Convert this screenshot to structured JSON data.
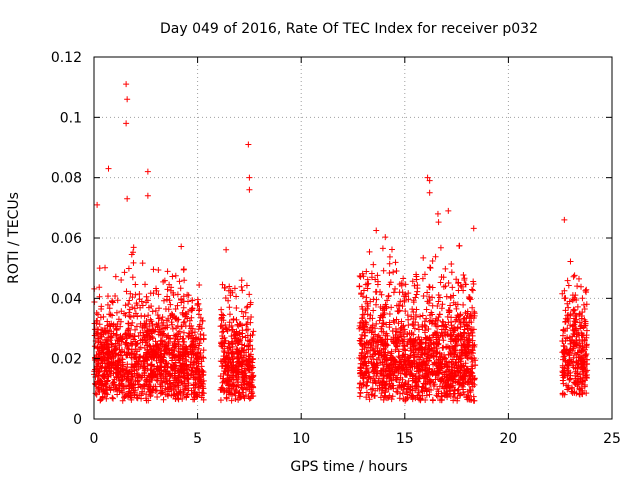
{
  "chart_data": {
    "type": "scatter",
    "title": "Day 049 of 2016, Rate Of TEC Index for receiver p032",
    "xlabel": "GPS time / hours",
    "ylabel": "ROTI / TECUs",
    "xlim": [
      0,
      25
    ],
    "ylim": [
      0,
      0.12
    ],
    "xticks": [
      0,
      5,
      10,
      15,
      20,
      25
    ],
    "yticks": [
      0,
      0.02,
      0.04,
      0.06,
      0.08,
      0.1,
      0.12
    ],
    "xtick_labels": [
      "0",
      "5",
      "10",
      "15",
      "20",
      "25"
    ],
    "ytick_labels": [
      "0",
      "0.02",
      "0.04",
      "0.06",
      "0.08",
      "0.1",
      "0.12"
    ],
    "grid": true,
    "marker": "+",
    "series_color": "#ff0000",
    "clusters": [
      {
        "x_range": [
          0.0,
          5.3
        ],
        "baseline": 0.012,
        "spread": 0.03
      },
      {
        "x_range": [
          6.1,
          7.7
        ],
        "baseline": 0.012,
        "spread": 0.028
      },
      {
        "x_range": [
          12.8,
          18.4
        ],
        "baseline": 0.012,
        "spread": 0.035
      },
      {
        "x_range": [
          22.6,
          23.8
        ],
        "baseline": 0.014,
        "spread": 0.03
      }
    ],
    "highlights": [
      {
        "x": 1.55,
        "y": 0.111
      },
      {
        "x": 1.6,
        "y": 0.106
      },
      {
        "x": 1.55,
        "y": 0.098
      },
      {
        "x": 0.7,
        "y": 0.083
      },
      {
        "x": 2.6,
        "y": 0.082
      },
      {
        "x": 2.6,
        "y": 0.074
      },
      {
        "x": 7.45,
        "y": 0.091
      },
      {
        "x": 7.5,
        "y": 0.08
      },
      {
        "x": 7.5,
        "y": 0.076
      },
      {
        "x": 16.1,
        "y": 0.08
      },
      {
        "x": 16.2,
        "y": 0.079
      },
      {
        "x": 16.2,
        "y": 0.075
      },
      {
        "x": 17.1,
        "y": 0.069
      },
      {
        "x": 16.6,
        "y": 0.068
      },
      {
        "x": 22.7,
        "y": 0.066
      },
      {
        "x": 0.15,
        "y": 0.071
      },
      {
        "x": 1.6,
        "y": 0.073
      }
    ]
  }
}
